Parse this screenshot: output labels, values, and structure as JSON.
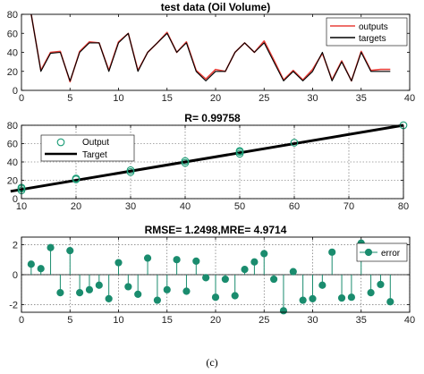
{
  "caption": "(c)",
  "chart_data": [
    {
      "type": "line",
      "title": "test data (Oil Volume)",
      "xlim": [
        0,
        40
      ],
      "ylim": [
        0,
        80
      ],
      "xticks": [
        0,
        5,
        10,
        15,
        20,
        25,
        30,
        35,
        40
      ],
      "yticks": [
        0,
        20,
        40,
        60,
        80
      ],
      "grid": false,
      "legend_position": "top-right",
      "x": [
        1,
        2,
        3,
        4,
        5,
        6,
        7,
        8,
        9,
        10,
        11,
        12,
        13,
        14,
        15,
        16,
        17,
        18,
        19,
        20,
        21,
        22,
        23,
        24,
        25,
        26,
        27,
        28,
        29,
        30,
        31,
        32,
        33,
        34,
        35,
        36,
        37,
        38
      ],
      "series": [
        {
          "name": "outputs",
          "color": "#e8403a",
          "values": [
            80,
            21,
            40,
            41,
            9,
            41,
            51,
            50,
            21,
            51,
            60,
            21,
            40,
            50,
            61,
            40,
            51,
            21,
            12,
            22,
            20,
            40,
            50,
            40,
            52,
            32,
            11,
            21,
            11,
            22,
            39,
            11,
            31,
            10,
            41,
            21,
            22,
            22
          ]
        },
        {
          "name": "targets",
          "color": "#000000",
          "values": [
            80,
            20,
            39,
            40,
            10,
            40,
            50,
            50,
            20,
            50,
            60,
            20,
            40,
            50,
            60,
            40,
            50,
            20,
            10,
            20,
            20,
            40,
            50,
            40,
            50,
            30,
            10,
            20,
            10,
            20,
            40,
            10,
            30,
            10,
            40,
            20,
            20,
            20
          ]
        }
      ]
    },
    {
      "type": "scatter",
      "title": "R= 0.99758",
      "xlim": [
        10,
        80
      ],
      "ylim": [
        0,
        80
      ],
      "xticks": [
        10,
        20,
        30,
        40,
        50,
        60,
        70,
        80
      ],
      "yticks": [
        0,
        20,
        40,
        60,
        80
      ],
      "grid": true,
      "legend_position": "top-left",
      "series": [
        {
          "name": "Output",
          "color": "#1a9c76",
          "marker": "circle",
          "points": [
            [
              10,
              9
            ],
            [
              10,
              11
            ],
            [
              10,
              12
            ],
            [
              20,
              21
            ],
            [
              20,
              22
            ],
            [
              30,
              29
            ],
            [
              30,
              31
            ],
            [
              40,
              39
            ],
            [
              40,
              41
            ],
            [
              50,
              49
            ],
            [
              50,
              51
            ],
            [
              50,
              52
            ],
            [
              60,
              61
            ],
            [
              80,
              80
            ]
          ]
        },
        {
          "name": "Target",
          "color": "#000000",
          "line": [
            [
              8,
              8
            ],
            [
              80,
              80
            ]
          ]
        }
      ]
    },
    {
      "type": "stem",
      "title": "RMSE= 1.2498,MRE= 4.9714",
      "xlim": [
        0,
        40
      ],
      "ylim": [
        -2.5,
        2.5
      ],
      "xticks": [
        0,
        5,
        10,
        15,
        20,
        25,
        30,
        35,
        40
      ],
      "yticks": [
        -2,
        0,
        2
      ],
      "grid": true,
      "legend_position": "top-right",
      "series": [
        {
          "name": "error",
          "color": "#1a8c6e",
          "x": [
            1,
            2,
            3,
            4,
            5,
            6,
            7,
            8,
            9,
            10,
            11,
            12,
            13,
            14,
            15,
            16,
            17,
            18,
            19,
            20,
            21,
            22,
            23,
            24,
            25,
            26,
            27,
            28,
            29,
            30,
            31,
            32,
            33,
            34,
            35,
            36,
            37,
            38
          ],
          "values": [
            0.7,
            0.4,
            1.8,
            -1.2,
            1.6,
            -1.2,
            -1.0,
            -0.7,
            -1.6,
            0.8,
            -0.8,
            -1.3,
            1.1,
            -1.7,
            -1.0,
            1.0,
            -1.1,
            0.9,
            -0.2,
            -1.5,
            -0.3,
            -1.4,
            0.35,
            0.85,
            1.4,
            -0.3,
            -2.4,
            0.2,
            -1.7,
            -1.6,
            -0.7,
            1.5,
            -1.55,
            -1.5,
            2.1,
            -1.2,
            -0.65,
            -1.8
          ]
        }
      ]
    }
  ]
}
